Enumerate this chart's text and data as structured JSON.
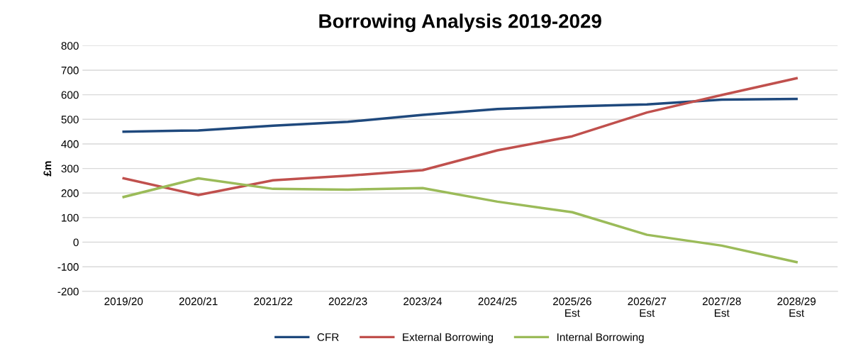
{
  "chart_data": {
    "type": "line",
    "title": "Borrowing Analysis 2019-2029",
    "ylabel": "£m",
    "categories": [
      "2019/20",
      "2020/21",
      "2021/22",
      "2022/23",
      "2023/24",
      "2024/25",
      "2025/26\nEst",
      "2026/27\nEst",
      "2027/28\nEst",
      "2028/29\nEst"
    ],
    "series": [
      {
        "name": "CFR",
        "color": "#1f497d",
        "values": [
          450,
          455,
          474,
          490,
          518,
          542,
          553,
          561,
          580,
          583
        ]
      },
      {
        "name": "External Borrowing",
        "color": "#c0504d",
        "values": [
          260,
          192,
          252,
          271,
          293,
          374,
          431,
          528,
          599,
          667
        ]
      },
      {
        "name": "Internal Borrowing",
        "color": "#9bbb59",
        "values": [
          184,
          260,
          217,
          214,
          220,
          165,
          122,
          30,
          -14,
          -81
        ]
      }
    ],
    "ylim": [
      -200,
      800
    ],
    "yticks": [
      -200,
      -100,
      0,
      100,
      200,
      300,
      400,
      500,
      600,
      700,
      800
    ],
    "grid": "y",
    "legend": "bottom",
    "marker": "none",
    "line_style": "solid"
  }
}
